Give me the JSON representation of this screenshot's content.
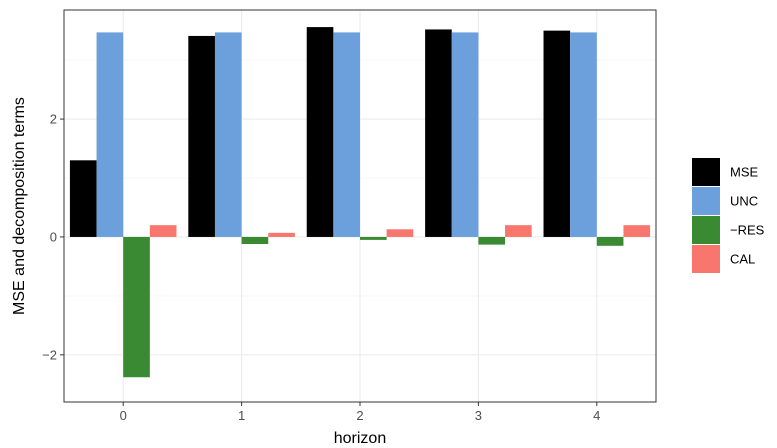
{
  "chart_data": {
    "type": "bar",
    "title": "",
    "xlabel": "horizon",
    "ylabel": "MSE and decomposition terms",
    "categories": [
      "0",
      "1",
      "2",
      "3",
      "4"
    ],
    "series": [
      {
        "name": "MSE",
        "color": "#000000",
        "values": [
          1.3,
          3.41,
          3.56,
          3.52,
          3.5
        ]
      },
      {
        "name": "UNC",
        "color": "#6ca0dc",
        "values": [
          3.47,
          3.47,
          3.47,
          3.47,
          3.47
        ]
      },
      {
        "name": "−RES",
        "color": "#3a8a34",
        "values": [
          -2.38,
          -0.12,
          -0.05,
          -0.13,
          -0.15
        ]
      },
      {
        "name": "CAL",
        "color": "#f8766d",
        "values": [
          0.2,
          0.07,
          0.13,
          0.2,
          0.2
        ]
      }
    ],
    "ylim": [
      -2.8,
      3.85
    ],
    "yticks": [
      -2,
      0,
      2
    ],
    "ytick_labels": [
      "−2",
      "0",
      "2"
    ],
    "grid": true,
    "legend_position": "right"
  }
}
